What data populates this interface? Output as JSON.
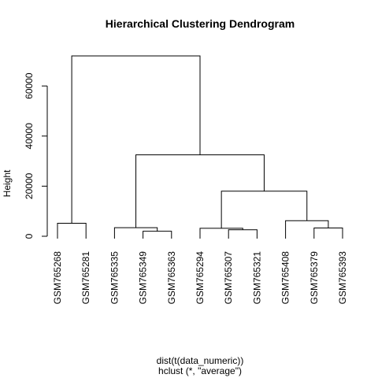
{
  "chart_data": {
    "type": "dendrogram",
    "title": "Hierarchical Clustering Dendrogram",
    "ylabel": "Height",
    "xlabel": "dist(t(data_numeric))",
    "sublabel": "hclust (*, \"average\")",
    "ylim": [
      0,
      72000
    ],
    "yticks": [
      0,
      20000,
      40000,
      60000
    ],
    "ytick_labels": [
      "0",
      "20000",
      "40000",
      "60000"
    ],
    "leaves": [
      "GSM765268",
      "GSM765281",
      "GSM765335",
      "GSM765349",
      "GSM765363",
      "GSM765294",
      "GSM765307",
      "GSM765321",
      "GSM765408",
      "GSM765379",
      "GSM765393"
    ],
    "merges": [
      {
        "left": "GSM765349",
        "right": "GSM765363",
        "height": 2000
      },
      {
        "left": "GSM765307",
        "right": "GSM765321",
        "height": 2600
      },
      {
        "left": "GSM765294",
        "right": 1,
        "height": 3200
      },
      {
        "left": "GSM765379",
        "right": "GSM765393",
        "height": 3300
      },
      {
        "left": "GSM765335",
        "right": 0,
        "height": 3400
      },
      {
        "left": "GSM765268",
        "right": "GSM765281",
        "height": 5200
      },
      {
        "left": "GSM765408",
        "right": 3,
        "height": 6200
      },
      {
        "left": 2,
        "right": 6,
        "height": 18000
      },
      {
        "left": 4,
        "right": 7,
        "height": 32500
      },
      {
        "left": 5,
        "right": 8,
        "height": 72000
      }
    ]
  }
}
